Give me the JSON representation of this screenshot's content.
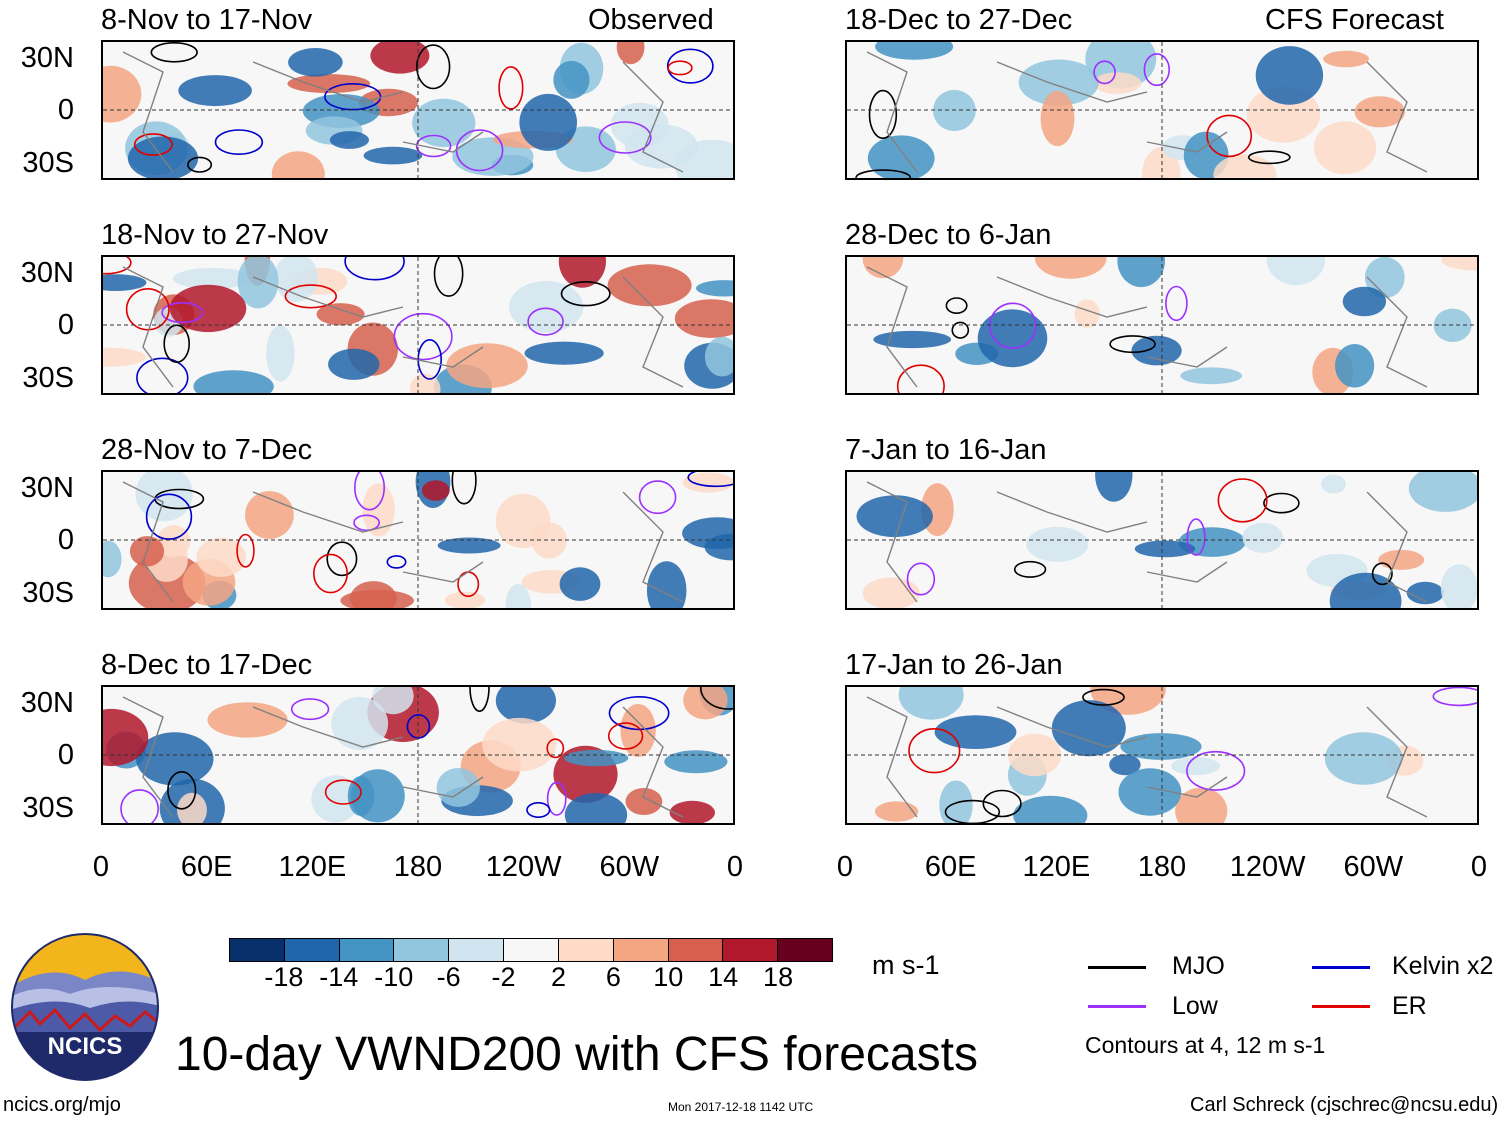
{
  "figure_title": "10-day VWND200 with CFS forecasts",
  "site": "ncics.org/mjo",
  "timestamp": "Mon 2017-12-18 1142 UTC",
  "author": "Carl Schreck (cjschrec@ncsu.edu)",
  "logo_text": "NCICS",
  "colors": {
    "neg": [
      "#08306b",
      "#2166ac",
      "#4393c3",
      "#92c5de",
      "#d1e5f0"
    ],
    "neutral": "#f7f7f7",
    "pos": [
      "#fddbc7",
      "#f4a582",
      "#d6604d",
      "#b2182b",
      "#67001f"
    ]
  },
  "chart_data": {
    "type": "heatmap",
    "variable": "VWND200",
    "units": "m s-1",
    "colorbar": {
      "ticks": [
        "-18",
        "-14",
        "-10",
        "-6",
        "-2",
        "2",
        "6",
        "10",
        "14",
        "18"
      ],
      "colors": [
        "#08306b",
        "#2166ac",
        "#4393c3",
        "#92c5de",
        "#d1e5f0",
        "#f7f7f7",
        "#fddbc7",
        "#f4a582",
        "#d6604d",
        "#b2182b",
        "#67001f"
      ]
    },
    "lon_ticks": [
      "0",
      "60E",
      "120E",
      "180",
      "120W",
      "60W",
      "0"
    ],
    "lat_ticks": [
      "30N",
      "0",
      "30S"
    ],
    "panels": {
      "observed": [
        {
          "title": "8-Nov to 17-Nov",
          "label": "Observed"
        },
        {
          "title": "18-Nov to 27-Nov"
        },
        {
          "title": "28-Nov to 7-Dec"
        },
        {
          "title": "8-Dec to 17-Dec"
        }
      ],
      "forecast": [
        {
          "title": "18-Dec to 27-Dec",
          "label": "CFS Forecast"
        },
        {
          "title": "28-Dec to 6-Jan"
        },
        {
          "title": "7-Jan to 16-Jan"
        },
        {
          "title": "17-Jan to 26-Jan"
        }
      ]
    },
    "contours": {
      "legend": [
        {
          "name": "MJO",
          "color": "#000000"
        },
        {
          "name": "Low",
          "color": "#9b30ff"
        },
        {
          "name": "Kelvin x2",
          "color": "#0000cc"
        },
        {
          "name": "ER",
          "color": "#e00000"
        }
      ],
      "note": "Contours at 4, 12 m s-1"
    }
  }
}
